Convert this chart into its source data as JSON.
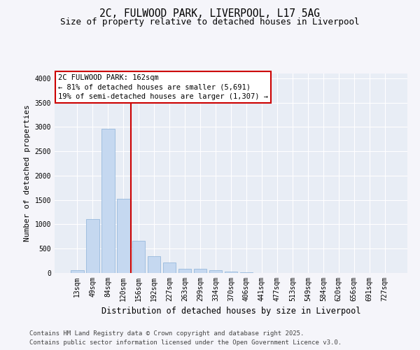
{
  "title_line1": "2C, FULWOOD PARK, LIVERPOOL, L17 5AG",
  "title_line2": "Size of property relative to detached houses in Liverpool",
  "xlabel": "Distribution of detached houses by size in Liverpool",
  "ylabel": "Number of detached properties",
  "categories": [
    "13sqm",
    "49sqm",
    "84sqm",
    "120sqm",
    "156sqm",
    "192sqm",
    "227sqm",
    "263sqm",
    "299sqm",
    "334sqm",
    "370sqm",
    "406sqm",
    "441sqm",
    "477sqm",
    "513sqm",
    "549sqm",
    "584sqm",
    "620sqm",
    "656sqm",
    "691sqm",
    "727sqm"
  ],
  "values": [
    55,
    1110,
    2960,
    1525,
    655,
    340,
    215,
    90,
    90,
    55,
    30,
    15,
    0,
    0,
    0,
    0,
    0,
    0,
    0,
    0,
    0
  ],
  "bar_color": "#c5d8f0",
  "bar_edge_color": "#8ab0d8",
  "vline_color": "#cc0000",
  "annotation_text": "2C FULWOOD PARK: 162sqm\n← 81% of detached houses are smaller (5,691)\n19% of semi-detached houses are larger (1,307) →",
  "ylim": [
    0,
    4100
  ],
  "yticks": [
    0,
    500,
    1000,
    1500,
    2000,
    2500,
    3000,
    3500,
    4000
  ],
  "plot_bg": "#e8edf5",
  "fig_bg": "#f5f5fa",
  "footer_line1": "Contains HM Land Registry data © Crown copyright and database right 2025.",
  "footer_line2": "Contains public sector information licensed under the Open Government Licence v3.0.",
  "title_fontsize": 10.5,
  "subtitle_fontsize": 9,
  "ylabel_fontsize": 8,
  "xlabel_fontsize": 8.5,
  "tick_fontsize": 7,
  "annot_fontsize": 7.5,
  "footer_fontsize": 6.5
}
